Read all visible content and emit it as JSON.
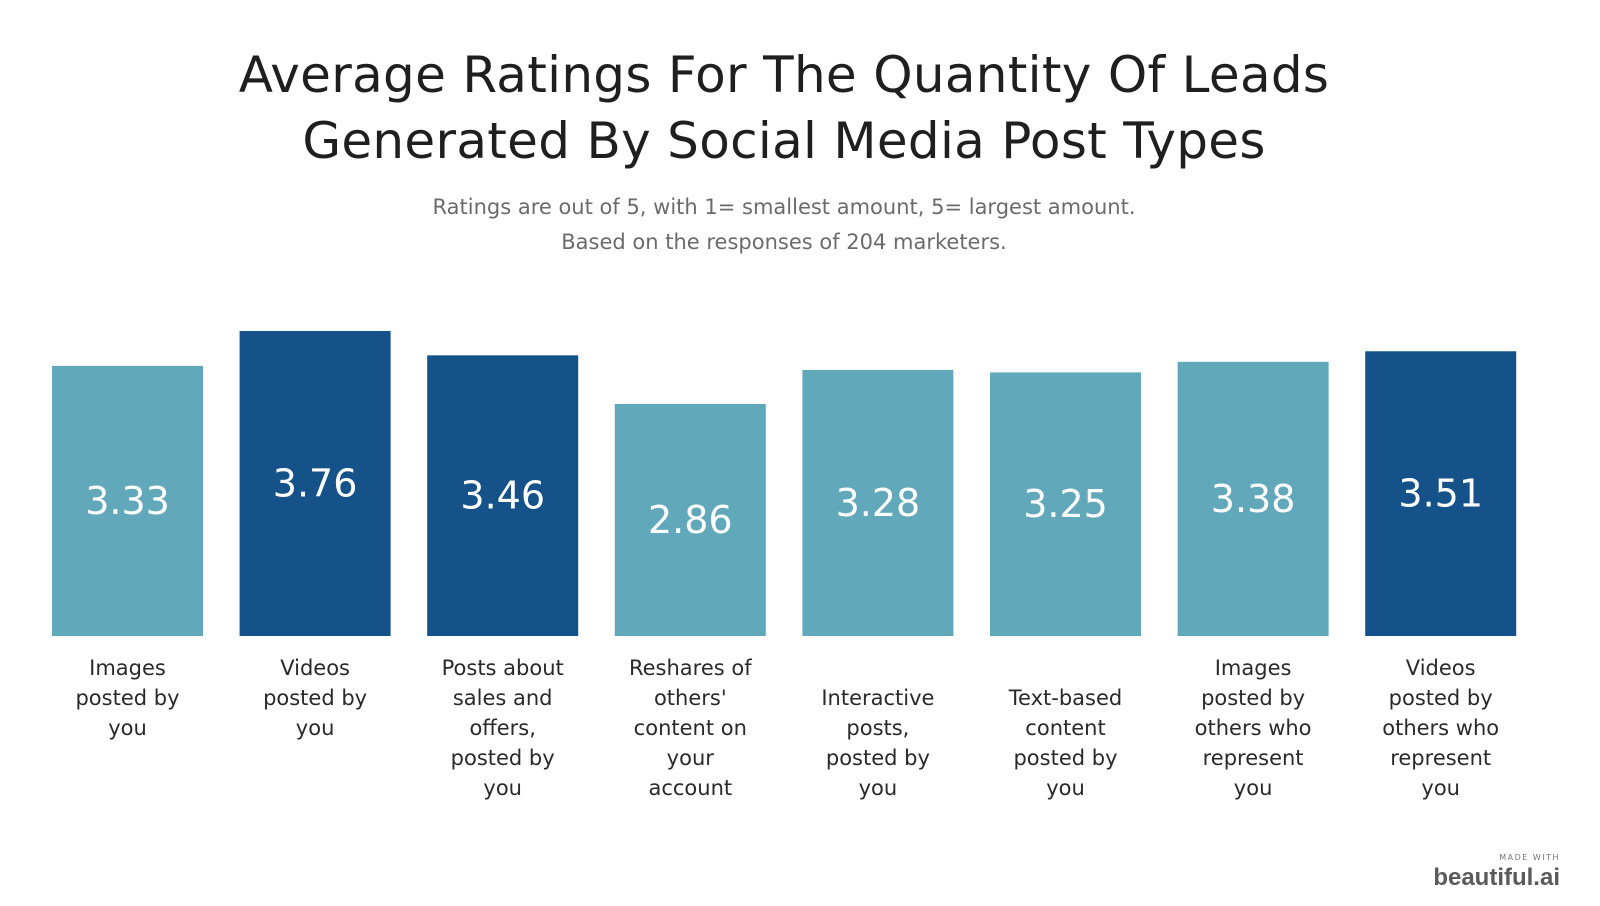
{
  "title_lines": [
    "Average Ratings For The Quantity Of Leads",
    "Generated By Social Media Post Types"
  ],
  "subtitle_lines": [
    "Ratings are out of 5, with 1= smallest amount, 5= largest amount.",
    "Based on the responses of 204 marketers."
  ],
  "branding": {
    "small": "MADE WITH",
    "main": "beautiful.ai"
  },
  "colors": {
    "light_bar": "#62a8bb",
    "dark_bar": "#15528a",
    "value_text": "#ffffff"
  },
  "chart_data": {
    "type": "bar",
    "title": "Average Ratings For The Quantity Of Leads Generated By Social Media Post Types",
    "subtitle": "Ratings are out of 5, with 1= smallest amount, 5= largest amount. Based on the responses of 204 marketers.",
    "xlabel": "",
    "ylabel": "",
    "ylim": [
      0,
      3.76
    ],
    "grid": false,
    "legend": "none",
    "categories": [
      [
        "Images",
        "posted by",
        "you"
      ],
      [
        "Videos",
        "posted by",
        "you"
      ],
      [
        "Posts about",
        "sales and",
        "offers,",
        "posted by",
        "you"
      ],
      [
        "Reshares of",
        "others'",
        "content on",
        "your",
        "account"
      ],
      [
        "Interactive",
        "posts,",
        "posted by",
        "you"
      ],
      [
        "Text-based",
        "content",
        "posted by",
        "you"
      ],
      [
        "Images",
        "posted by",
        "others who",
        "represent",
        "you"
      ],
      [
        "Videos",
        "posted by",
        "others who",
        "represent",
        "you"
      ]
    ],
    "values": [
      3.33,
      3.76,
      3.46,
      2.86,
      3.28,
      3.25,
      3.38,
      3.51
    ],
    "value_labels": [
      "3.33",
      "3.76",
      "3.46",
      "2.86",
      "3.28",
      "3.25",
      "3.38",
      "3.51"
    ],
    "highlight": [
      false,
      true,
      true,
      false,
      false,
      false,
      false,
      true
    ]
  }
}
